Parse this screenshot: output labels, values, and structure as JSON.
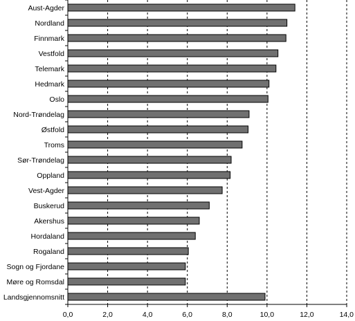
{
  "chart_data": {
    "type": "bar",
    "orientation": "horizontal",
    "categories": [
      "Aust-Agder",
      "Nordland",
      "Finnmark",
      "Vestfold",
      "Telemark",
      "Hedmark",
      "Oslo",
      "Nord-Trøndelag",
      "Østfold",
      "Troms",
      "Sør-Trøndelag",
      "Oppland",
      "Vest-Agder",
      "Buskerud",
      "Akershus",
      "Hordaland",
      "Rogaland",
      "Sogn og Fjordane",
      "Møre og Romsdal",
      "Landsgjennomsnitt"
    ],
    "values": [
      11.4,
      11.0,
      10.95,
      10.55,
      10.45,
      10.1,
      10.05,
      9.1,
      9.05,
      8.75,
      8.2,
      8.15,
      7.75,
      7.1,
      6.6,
      6.4,
      6.05,
      5.9,
      5.9,
      9.9
    ],
    "xlim": [
      0,
      14
    ],
    "xticks": [
      "0,0",
      "2,0",
      "4,0",
      "6,0",
      "8,0",
      "10,0",
      "12,0",
      "14,0"
    ],
    "grid": "vertical dashed",
    "bar_color": "#707070",
    "title": "",
    "xlabel": "",
    "ylabel": ""
  }
}
